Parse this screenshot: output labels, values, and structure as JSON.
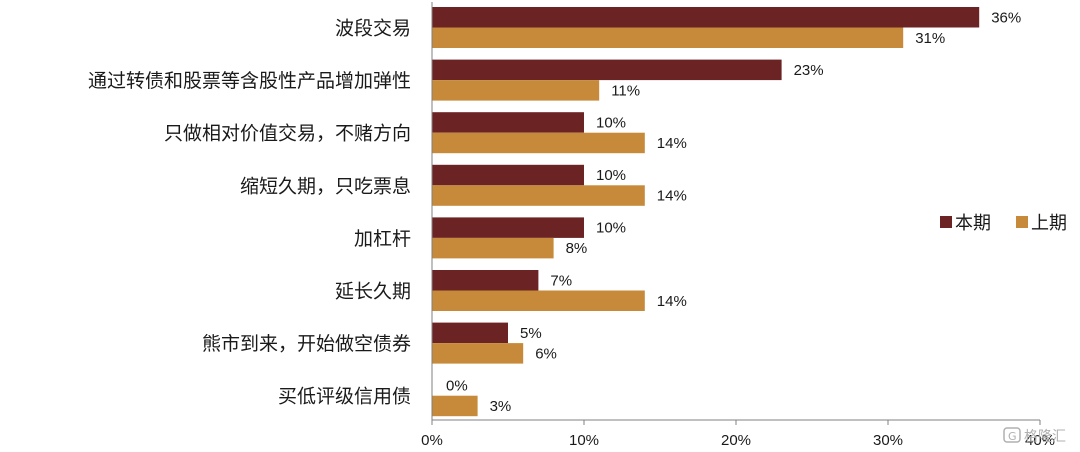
{
  "chart_data": {
    "type": "bar",
    "orientation": "horizontal",
    "categories": [
      "波段交易",
      "通过转债和股票等含股性产品增加弹性",
      "只做相对价值交易，不赌方向",
      "缩短久期，只吃票息",
      "加杠杆",
      "延长久期",
      "熊市到来，开始做空债券",
      "买低评级信用债"
    ],
    "series": [
      {
        "name": "本期",
        "values": [
          36,
          23,
          10,
          10,
          10,
          7,
          5,
          0
        ],
        "labels": [
          "36%",
          "23%",
          "10%",
          "10%",
          "10%",
          "7%",
          "5%",
          "0%"
        ],
        "color": "#6B2323"
      },
      {
        "name": "上期",
        "values": [
          31,
          11,
          14,
          14,
          8,
          14,
          6,
          3
        ],
        "labels": [
          "31%",
          "11%",
          "14%",
          "14%",
          "8%",
          "14%",
          "6%",
          "3%"
        ],
        "color": "#C68A3A"
      }
    ],
    "xlim": [
      0,
      40
    ],
    "xticks": [
      "0%",
      "10%",
      "20%",
      "30%",
      "40%"
    ],
    "xtick_values": [
      0,
      10,
      20,
      30,
      40
    ],
    "legend_position": "right",
    "grid": false
  },
  "watermark": "格隆汇"
}
